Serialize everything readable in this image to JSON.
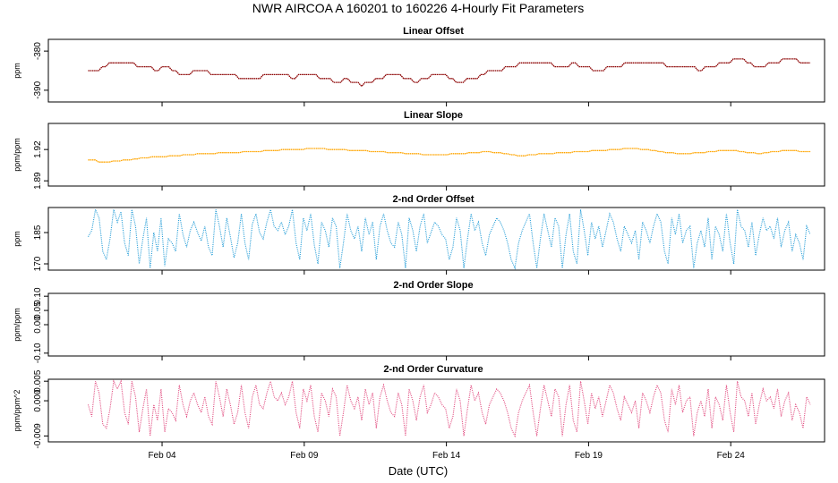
{
  "title": "NWR   AIRCOA A   160201 to 160226   4-Hourly Fit Parameters",
  "xlabel": "Date (UTC)",
  "x_ticks": [
    "Feb 04",
    "Feb 09",
    "Feb 14",
    "Feb 19",
    "Feb 24"
  ],
  "chart_data": [
    {
      "type": "line",
      "title": "Linear Offset",
      "ylabel": "ppm",
      "ylim": [
        -393,
        -377
      ],
      "yticks": [
        -390,
        -380
      ],
      "color": "#8b0000",
      "x_range_days": [
        1.4,
        26.8
      ],
      "values": [
        -385,
        -385,
        -385,
        -385,
        -384,
        -384,
        -383,
        -383,
        -383,
        -383,
        -383,
        -383,
        -383,
        -383,
        -384,
        -384,
        -384,
        -384,
        -384,
        -385,
        -385,
        -384,
        -384,
        -384,
        -385,
        -385,
        -386,
        -386,
        -386,
        -386,
        -385,
        -385,
        -385,
        -385,
        -385,
        -386,
        -386,
        -386,
        -386,
        -386,
        -386,
        -386,
        -386,
        -387,
        -387,
        -387,
        -387,
        -387,
        -387,
        -387,
        -386,
        -386,
        -386,
        -386,
        -386,
        -386,
        -386,
        -386,
        -387,
        -387,
        -386,
        -386,
        -386,
        -386,
        -386,
        -386,
        -387,
        -387,
        -387,
        -387,
        -388,
        -388,
        -388,
        -387,
        -387,
        -388,
        -388,
        -388,
        -389,
        -388,
        -388,
        -388,
        -387,
        -387,
        -387,
        -386,
        -386,
        -386,
        -386,
        -386,
        -387,
        -387,
        -387,
        -388,
        -388,
        -387,
        -387,
        -387,
        -386,
        -386,
        -386,
        -386,
        -386,
        -387,
        -387,
        -388,
        -388,
        -388,
        -387,
        -387,
        -387,
        -387,
        -386,
        -386,
        -385,
        -385,
        -385,
        -385,
        -385,
        -384,
        -384,
        -384,
        -384,
        -383,
        -383,
        -383,
        -383,
        -383,
        -383,
        -383,
        -383,
        -383,
        -383,
        -384,
        -384,
        -384,
        -384,
        -384,
        -383,
        -383,
        -384,
        -384,
        -384,
        -384,
        -385,
        -385,
        -385,
        -385,
        -384,
        -384,
        -384,
        -384,
        -384,
        -383,
        -383,
        -383,
        -383,
        -383,
        -383,
        -383,
        -383,
        -383,
        -383,
        -383,
        -383,
        -384,
        -384,
        -384,
        -384,
        -384,
        -384,
        -384,
        -384,
        -384,
        -385,
        -385,
        -384,
        -384,
        -384,
        -384,
        -383,
        -383,
        -383,
        -383,
        -382,
        -382,
        -382,
        -382,
        -383,
        -383,
        -384,
        -384,
        -384,
        -384,
        -383,
        -383,
        -383,
        -383,
        -382,
        -382,
        -382,
        -382,
        -382,
        -383,
        -383,
        -383,
        -383
      ]
    },
    {
      "type": "line",
      "title": "Linear Slope",
      "ylabel": "ppm/ppm",
      "ylim": [
        1.885,
        1.945
      ],
      "yticks": [
        1.89,
        1.92
      ],
      "color": "#ffa500",
      "x_range_days": [
        1.4,
        26.8
      ],
      "values": [
        1.91,
        1.91,
        1.91,
        1.908,
        1.908,
        1.908,
        1.908,
        1.909,
        1.909,
        1.909,
        1.91,
        1.91,
        1.91,
        1.911,
        1.911,
        1.912,
        1.912,
        1.912,
        1.913,
        1.913,
        1.913,
        1.913,
        1.913,
        1.914,
        1.914,
        1.914,
        1.914,
        1.915,
        1.915,
        1.915,
        1.915,
        1.916,
        1.916,
        1.916,
        1.916,
        1.916,
        1.916,
        1.917,
        1.917,
        1.917,
        1.917,
        1.917,
        1.917,
        1.917,
        1.918,
        1.918,
        1.918,
        1.918,
        1.918,
        1.918,
        1.919,
        1.919,
        1.919,
        1.919,
        1.919,
        1.92,
        1.92,
        1.92,
        1.92,
        1.92,
        1.92,
        1.92,
        1.921,
        1.921,
        1.921,
        1.921,
        1.921,
        1.921,
        1.92,
        1.92,
        1.92,
        1.92,
        1.92,
        1.92,
        1.919,
        1.919,
        1.919,
        1.919,
        1.919,
        1.919,
        1.918,
        1.918,
        1.918,
        1.918,
        1.918,
        1.917,
        1.917,
        1.917,
        1.917,
        1.917,
        1.916,
        1.916,
        1.916,
        1.916,
        1.916,
        1.915,
        1.915,
        1.915,
        1.915,
        1.915,
        1.915,
        1.915,
        1.915,
        1.916,
        1.916,
        1.916,
        1.916,
        1.916,
        1.917,
        1.917,
        1.917,
        1.917,
        1.918,
        1.918,
        1.918,
        1.917,
        1.917,
        1.917,
        1.916,
        1.916,
        1.915,
        1.915,
        1.914,
        1.914,
        1.914,
        1.915,
        1.915,
        1.915,
        1.916,
        1.916,
        1.916,
        1.916,
        1.916,
        1.917,
        1.917,
        1.917,
        1.917,
        1.917,
        1.918,
        1.918,
        1.918,
        1.918,
        1.918,
        1.919,
        1.919,
        1.919,
        1.919,
        1.919,
        1.92,
        1.92,
        1.92,
        1.92,
        1.921,
        1.921,
        1.921,
        1.921,
        1.921,
        1.92,
        1.92,
        1.92,
        1.919,
        1.919,
        1.918,
        1.918,
        1.917,
        1.917,
        1.917,
        1.916,
        1.916,
        1.916,
        1.916,
        1.916,
        1.917,
        1.917,
        1.917,
        1.917,
        1.918,
        1.918,
        1.918,
        1.919,
        1.919,
        1.919,
        1.919,
        1.919,
        1.919,
        1.918,
        1.918,
        1.917,
        1.917,
        1.917,
        1.916,
        1.916,
        1.917,
        1.917,
        1.918,
        1.918,
        1.918,
        1.919,
        1.919,
        1.919,
        1.919,
        1.919,
        1.918,
        1.918,
        1.918,
        1.918
      ]
    },
    {
      "type": "line",
      "title": "2-nd Order Offset",
      "ylabel": "ppm",
      "ylim": [
        167,
        197
      ],
      "yticks": [
        170,
        185
      ],
      "color": "#1e9ad6",
      "x_range_days": [
        1.4,
        26.8
      ],
      "values": [
        183,
        186,
        196,
        192,
        176,
        172,
        182,
        196,
        190,
        195,
        180,
        174,
        196,
        188,
        170,
        182,
        192,
        168,
        185,
        176,
        192,
        169,
        182,
        180,
        176,
        194,
        184,
        178,
        186,
        190,
        185,
        181,
        188,
        178,
        174,
        196,
        188,
        178,
        192,
        183,
        173,
        180,
        194,
        180,
        172,
        189,
        194,
        185,
        182,
        190,
        196,
        188,
        186,
        190,
        184,
        188,
        196,
        180,
        172,
        192,
        186,
        194,
        179,
        170,
        190,
        186,
        178,
        192,
        188,
        168,
        180,
        194,
        186,
        182,
        188,
        176,
        192,
        184,
        190,
        172,
        188,
        194,
        186,
        180,
        178,
        190,
        184,
        168,
        192,
        186,
        176,
        188,
        194,
        180,
        185,
        190,
        188,
        184,
        182,
        172,
        178,
        192,
        186,
        168,
        182,
        194,
        186,
        190,
        180,
        174,
        184,
        188,
        192,
        190,
        186,
        180,
        172,
        168,
        180,
        186,
        190,
        194,
        180,
        168,
        182,
        194,
        186,
        178,
        192,
        188,
        168,
        184,
        194,
        176,
        170,
        196,
        186,
        174,
        190,
        182,
        188,
        178,
        186,
        194,
        190,
        182,
        176,
        188,
        184,
        180,
        186,
        172,
        190,
        186,
        180,
        188,
        194,
        190,
        176,
        170,
        192,
        184,
        194,
        180,
        186,
        188,
        168,
        180,
        186,
        178,
        192,
        172,
        188,
        184,
        176,
        194,
        180,
        170,
        196,
        188,
        186,
        178,
        190,
        174,
        184,
        192,
        186,
        188,
        182,
        192,
        178,
        186,
        190,
        176,
        184,
        180,
        172,
        188,
        184
      ]
    },
    {
      "type": "line",
      "title": "2-nd Order Slope",
      "ylabel": "ppm/ppm",
      "ylim": [
        -0.11,
        0.11
      ],
      "yticks": [
        -0.1,
        0.0,
        0.05,
        0.1
      ],
      "color": "#000000",
      "values": []
    },
    {
      "type": "line",
      "title": "2-nd Order Curvature",
      "ylabel": "ppm/ppm^2",
      "ylim": [
        -0.0105,
        0.0055
      ],
      "yticks": [
        -0.009,
        0.0,
        0.005
      ],
      "color": "#e0457b",
      "x_range_days": [
        1.4,
        26.8
      ],
      "values": [
        -0.001,
        -0.004,
        0.005,
        0.002,
        -0.006,
        -0.007,
        -0.002,
        0.005,
        0.003,
        0.005,
        -0.003,
        -0.006,
        0.005,
        0.001,
        -0.008,
        -0.002,
        0.003,
        -0.009,
        -0.001,
        -0.005,
        0.003,
        -0.008,
        -0.002,
        -0.003,
        -0.005,
        0.004,
        -0.001,
        -0.004,
        0.0,
        0.002,
        -0.001,
        -0.003,
        0.001,
        -0.004,
        -0.006,
        0.005,
        0.001,
        -0.004,
        0.003,
        -0.001,
        -0.006,
        -0.003,
        0.004,
        -0.003,
        -0.007,
        0.001,
        0.004,
        -0.001,
        -0.002,
        0.002,
        0.005,
        0.001,
        0.0,
        0.002,
        -0.001,
        0.001,
        0.005,
        -0.003,
        -0.007,
        0.003,
        0.0,
        0.004,
        -0.004,
        -0.008,
        0.002,
        0.0,
        -0.004,
        0.003,
        0.001,
        -0.009,
        -0.003,
        0.004,
        0.0,
        -0.002,
        0.001,
        -0.005,
        0.003,
        -0.001,
        0.002,
        -0.007,
        0.001,
        0.004,
        0.0,
        -0.003,
        -0.004,
        0.002,
        -0.001,
        -0.009,
        0.003,
        0.0,
        -0.005,
        0.001,
        0.004,
        -0.003,
        -0.001,
        0.002,
        0.001,
        -0.001,
        -0.002,
        -0.007,
        -0.004,
        0.003,
        0.0,
        -0.009,
        -0.002,
        0.004,
        0.0,
        0.002,
        -0.003,
        -0.006,
        -0.001,
        0.001,
        0.003,
        0.002,
        0.0,
        -0.003,
        -0.007,
        -0.009,
        -0.003,
        0.0,
        0.002,
        0.004,
        -0.003,
        -0.009,
        -0.002,
        0.004,
        0.0,
        -0.004,
        0.003,
        0.001,
        -0.009,
        -0.001,
        0.004,
        -0.005,
        -0.008,
        0.005,
        0.0,
        -0.006,
        0.002,
        -0.002,
        0.001,
        -0.004,
        0.0,
        0.004,
        0.002,
        -0.002,
        -0.005,
        0.001,
        -0.001,
        -0.003,
        0.0,
        -0.007,
        0.002,
        0.0,
        -0.003,
        0.001,
        0.004,
        0.002,
        -0.005,
        -0.008,
        0.003,
        -0.001,
        0.004,
        -0.003,
        0.0,
        0.001,
        -0.009,
        -0.003,
        0.0,
        -0.004,
        0.003,
        -0.007,
        0.001,
        -0.001,
        -0.005,
        0.004,
        -0.003,
        -0.008,
        0.005,
        0.001,
        0.0,
        -0.004,
        0.002,
        -0.006,
        -0.001,
        0.003,
        0.0,
        0.001,
        -0.002,
        0.003,
        -0.004,
        0.0,
        0.002,
        -0.005,
        -0.001,
        -0.003,
        -0.007,
        0.001,
        -0.001
      ]
    }
  ]
}
